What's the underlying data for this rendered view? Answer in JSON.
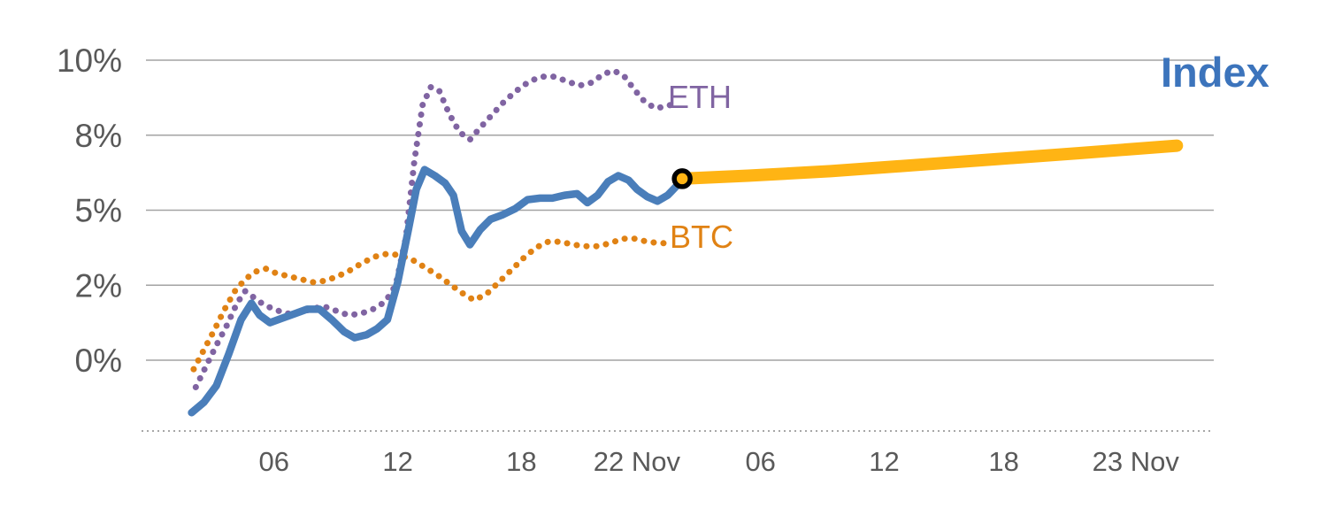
{
  "legend": {
    "eth": "ETH",
    "btc": "BTC",
    "index": "Index"
  },
  "colors": {
    "index_line": "#4a7eba",
    "index_label": "#3c74bc",
    "eth": "#8064a2",
    "btc": "#e08214",
    "forecast": "#ffb414",
    "marker_ring": "#000000",
    "gridline": "#a3a3a3",
    "axis_text": "#595959"
  },
  "chart_data": {
    "type": "line",
    "title": "",
    "xlabel": "",
    "ylabel": "",
    "x_axis": {
      "unit": "hour",
      "range_hours": [
        0,
        51.5
      ],
      "ticks": [
        {
          "label": "06",
          "hour": 6
        },
        {
          "label": "12",
          "hour": 12
        },
        {
          "label": "18",
          "hour": 18
        },
        {
          "label": "22 Nov",
          "hour": 23.6
        },
        {
          "label": "06",
          "hour": 29.6
        },
        {
          "label": "12",
          "hour": 35.6
        },
        {
          "label": "18",
          "hour": 41.4
        },
        {
          "label": "23 Nov",
          "hour": 47.8
        }
      ]
    },
    "y_axis": {
      "unit": "%",
      "grid": true,
      "ticks": [
        {
          "label": "10%",
          "value": 10
        },
        {
          "label": "8%",
          "value": 7.5
        },
        {
          "label": "5%",
          "value": 5
        },
        {
          "label": "2%",
          "value": 2.5
        },
        {
          "label": "0%",
          "value": 0
        }
      ]
    },
    "series": [
      {
        "name": "ETH",
        "style": "dotted",
        "color": "#8064a2",
        "points": [
          [
            2.2,
            -0.9
          ],
          [
            2.7,
            -0.2
          ],
          [
            3.2,
            0.5
          ],
          [
            3.7,
            1.15
          ],
          [
            4.2,
            1.9
          ],
          [
            4.6,
            2.3
          ],
          [
            5.0,
            2.1
          ],
          [
            5.5,
            1.85
          ],
          [
            6.0,
            1.7
          ],
          [
            6.6,
            1.55
          ],
          [
            7.2,
            1.6
          ],
          [
            7.8,
            1.7
          ],
          [
            8.4,
            1.8
          ],
          [
            9.0,
            1.65
          ],
          [
            9.6,
            1.5
          ],
          [
            10.2,
            1.55
          ],
          [
            10.8,
            1.7
          ],
          [
            11.4,
            1.95
          ],
          [
            11.9,
            2.5
          ],
          [
            12.4,
            4.1
          ],
          [
            12.8,
            6.6
          ],
          [
            13.2,
            8.5
          ],
          [
            13.6,
            9.1
          ],
          [
            14.0,
            9.0
          ],
          [
            14.5,
            8.2
          ],
          [
            15.0,
            7.6
          ],
          [
            15.5,
            7.35
          ],
          [
            16.0,
            7.75
          ],
          [
            16.6,
            8.2
          ],
          [
            17.2,
            8.65
          ],
          [
            17.8,
            9.0
          ],
          [
            18.4,
            9.3
          ],
          [
            19.0,
            9.45
          ],
          [
            19.6,
            9.45
          ],
          [
            20.2,
            9.3
          ],
          [
            20.8,
            9.15
          ],
          [
            21.4,
            9.25
          ],
          [
            22.0,
            9.55
          ],
          [
            22.5,
            9.65
          ],
          [
            23.0,
            9.45
          ],
          [
            23.5,
            9.0
          ],
          [
            24.0,
            8.6
          ],
          [
            24.5,
            8.4
          ],
          [
            25.0,
            8.45
          ],
          [
            25.4,
            8.55
          ]
        ]
      },
      {
        "name": "BTC",
        "style": "dotted",
        "color": "#e08214",
        "points": [
          [
            2.1,
            -0.3
          ],
          [
            2.6,
            0.35
          ],
          [
            3.1,
            1.0
          ],
          [
            3.6,
            1.7
          ],
          [
            4.1,
            2.3
          ],
          [
            4.6,
            2.7
          ],
          [
            5.1,
            2.95
          ],
          [
            5.6,
            3.05
          ],
          [
            6.1,
            2.9
          ],
          [
            6.7,
            2.8
          ],
          [
            7.3,
            2.7
          ],
          [
            7.9,
            2.6
          ],
          [
            8.5,
            2.65
          ],
          [
            9.1,
            2.8
          ],
          [
            9.7,
            3.0
          ],
          [
            10.3,
            3.25
          ],
          [
            10.9,
            3.45
          ],
          [
            11.5,
            3.55
          ],
          [
            12.1,
            3.5
          ],
          [
            12.7,
            3.35
          ],
          [
            13.3,
            3.1
          ],
          [
            13.9,
            2.85
          ],
          [
            14.5,
            2.55
          ],
          [
            15.1,
            2.25
          ],
          [
            15.7,
            2.0
          ],
          [
            16.3,
            2.2
          ],
          [
            16.9,
            2.6
          ],
          [
            17.5,
            3.0
          ],
          [
            18.1,
            3.4
          ],
          [
            18.7,
            3.75
          ],
          [
            19.3,
            3.95
          ],
          [
            19.9,
            3.95
          ],
          [
            20.5,
            3.85
          ],
          [
            21.1,
            3.8
          ],
          [
            21.7,
            3.8
          ],
          [
            22.3,
            3.9
          ],
          [
            22.9,
            4.05
          ],
          [
            23.5,
            4.05
          ],
          [
            24.1,
            3.95
          ],
          [
            24.7,
            3.9
          ],
          [
            25.2,
            3.9
          ]
        ]
      },
      {
        "name": "Index forecast",
        "style": "thick",
        "color": "#ffb414",
        "points": [
          [
            25.8,
            6.05
          ],
          [
            29,
            6.15
          ],
          [
            33,
            6.3
          ],
          [
            37,
            6.5
          ],
          [
            41,
            6.7
          ],
          [
            45,
            6.9
          ],
          [
            49.8,
            7.15
          ]
        ]
      },
      {
        "name": "Index",
        "style": "solid",
        "color": "#4a7eba",
        "points": [
          [
            2.0,
            -1.75
          ],
          [
            2.6,
            -1.4
          ],
          [
            3.2,
            -0.85
          ],
          [
            3.8,
            0.2
          ],
          [
            4.4,
            1.35
          ],
          [
            4.9,
            1.9
          ],
          [
            5.3,
            1.5
          ],
          [
            5.8,
            1.25
          ],
          [
            6.4,
            1.4
          ],
          [
            7.0,
            1.55
          ],
          [
            7.6,
            1.7
          ],
          [
            8.2,
            1.7
          ],
          [
            8.8,
            1.35
          ],
          [
            9.4,
            0.95
          ],
          [
            9.9,
            0.75
          ],
          [
            10.5,
            0.85
          ],
          [
            11.0,
            1.05
          ],
          [
            11.5,
            1.35
          ],
          [
            12.0,
            2.6
          ],
          [
            12.5,
            4.3
          ],
          [
            12.9,
            5.7
          ],
          [
            13.3,
            6.35
          ],
          [
            13.8,
            6.15
          ],
          [
            14.3,
            5.9
          ],
          [
            14.7,
            5.5
          ],
          [
            15.1,
            4.3
          ],
          [
            15.5,
            3.85
          ],
          [
            16.0,
            4.35
          ],
          [
            16.5,
            4.7
          ],
          [
            17.1,
            4.85
          ],
          [
            17.7,
            5.05
          ],
          [
            18.3,
            5.35
          ],
          [
            18.9,
            5.4
          ],
          [
            19.5,
            5.4
          ],
          [
            20.1,
            5.5
          ],
          [
            20.7,
            5.55
          ],
          [
            21.2,
            5.25
          ],
          [
            21.7,
            5.5
          ],
          [
            22.2,
            5.95
          ],
          [
            22.7,
            6.15
          ],
          [
            23.2,
            6.0
          ],
          [
            23.6,
            5.7
          ],
          [
            24.1,
            5.45
          ],
          [
            24.6,
            5.3
          ],
          [
            25.1,
            5.5
          ],
          [
            25.8,
            6.0
          ]
        ]
      }
    ],
    "marker": {
      "x": 25.8,
      "y": 6.05,
      "fill": "#ffb414",
      "ring": "#000000"
    }
  }
}
